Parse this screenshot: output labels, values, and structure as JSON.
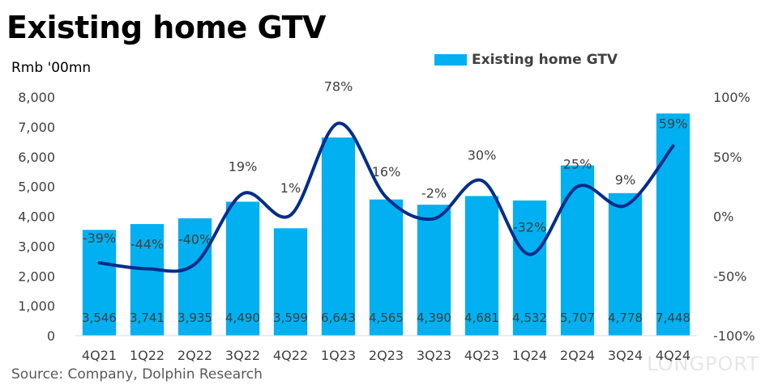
{
  "header": {
    "title": "Existing home GTV",
    "unit": "Rmb '00mn"
  },
  "footer": {
    "source": "Source: Company, Dolphin Research",
    "watermark": "LONGPORT"
  },
  "colors": {
    "bar": "#00b0f0",
    "line": "#002d8a"
  },
  "chart_data": {
    "type": "bar",
    "categories": [
      "4Q21",
      "1Q22",
      "2Q22",
      "3Q22",
      "4Q22",
      "1Q23",
      "2Q23",
      "3Q23",
      "4Q23",
      "1Q24",
      "2Q24",
      "3Q24",
      "4Q24"
    ],
    "series": [
      {
        "name": "Existing home GTV",
        "type": "bar",
        "axis": "left",
        "values": [
          3546,
          3741,
          3935,
          4490,
          3599,
          6643,
          4565,
          4390,
          4681,
          4532,
          5707,
          4778,
          7448
        ],
        "value_labels": [
          "3,546",
          "3,741",
          "3,935",
          "4,490",
          "3,599",
          "6,643",
          "4,565",
          "4,390",
          "4,681",
          "4,532",
          "5,707",
          "4,778",
          "7,448"
        ]
      },
      {
        "type": "line",
        "axis": "right",
        "values": [
          -39,
          -44,
          -40,
          19,
          1,
          78,
          16,
          -2,
          30,
          -32,
          25,
          9,
          59
        ],
        "value_labels": [
          "-39%",
          "-44%",
          "-40%",
          "19%",
          "1%",
          "78%",
          "16%",
          "-2%",
          "30%",
          "-32%",
          "25%",
          "9%",
          "59%"
        ]
      }
    ],
    "y_left": {
      "min": 0,
      "max": 8000,
      "ticks": [
        "0",
        "1,000",
        "2,000",
        "3,000",
        "4,000",
        "5,000",
        "6,000",
        "7,000",
        "8,000"
      ]
    },
    "y_right": {
      "min": -100,
      "max": 100,
      "ticks": [
        "-100%",
        "-50%",
        "0%",
        "50%",
        "100%"
      ]
    },
    "legend": {
      "position": "top-right",
      "entries": [
        "Existing home GTV"
      ]
    },
    "grid": false
  }
}
